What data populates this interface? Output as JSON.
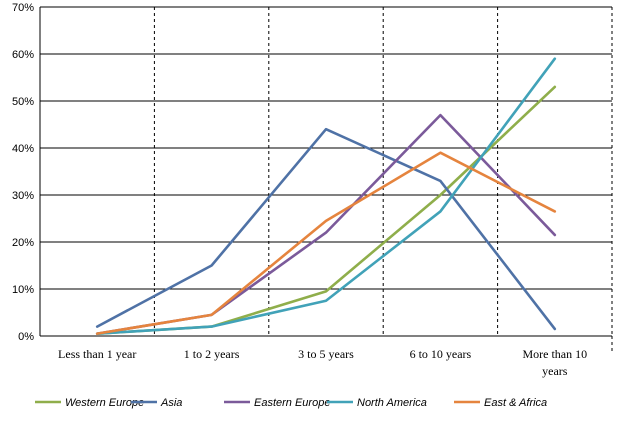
{
  "chart_data": {
    "type": "line",
    "title": "",
    "xlabel": "",
    "ylabel": "",
    "categories": [
      "Less than 1 year",
      "1 to 2 years",
      "3 to 5 years",
      "6 to 10 years",
      "More than 10 years"
    ],
    "category_lines": [
      [
        "Less than 1 year"
      ],
      [
        "1 to 2 years"
      ],
      [
        "3 to 5 years"
      ],
      [
        "6 to 10 years"
      ],
      [
        "More than 10",
        "years"
      ]
    ],
    "y_ticks": [
      "0%",
      "10%",
      "20%",
      "30%",
      "40%",
      "50%",
      "60%",
      "70%"
    ],
    "ylim": [
      0,
      70
    ],
    "legend_position": "bottom",
    "series": [
      {
        "name": "Western Europe",
        "color": "#8FAE4B",
        "values": [
          0.5,
          2,
          9.5,
          30,
          53
        ]
      },
      {
        "name": "Asia",
        "color": "#4F72A6",
        "values": [
          2,
          15,
          44,
          33,
          1.5
        ]
      },
      {
        "name": "Eastern Europe",
        "color": "#7B5A9A",
        "values": [
          0.5,
          4.5,
          22,
          47,
          21.5
        ]
      },
      {
        "name": "North America",
        "color": "#41A2B8",
        "values": [
          0.5,
          2,
          7.5,
          26.5,
          59
        ]
      },
      {
        "name": "East & Africa",
        "color": "#E5843E",
        "values": [
          0.5,
          4.5,
          24.5,
          39,
          26.5
        ]
      }
    ]
  }
}
